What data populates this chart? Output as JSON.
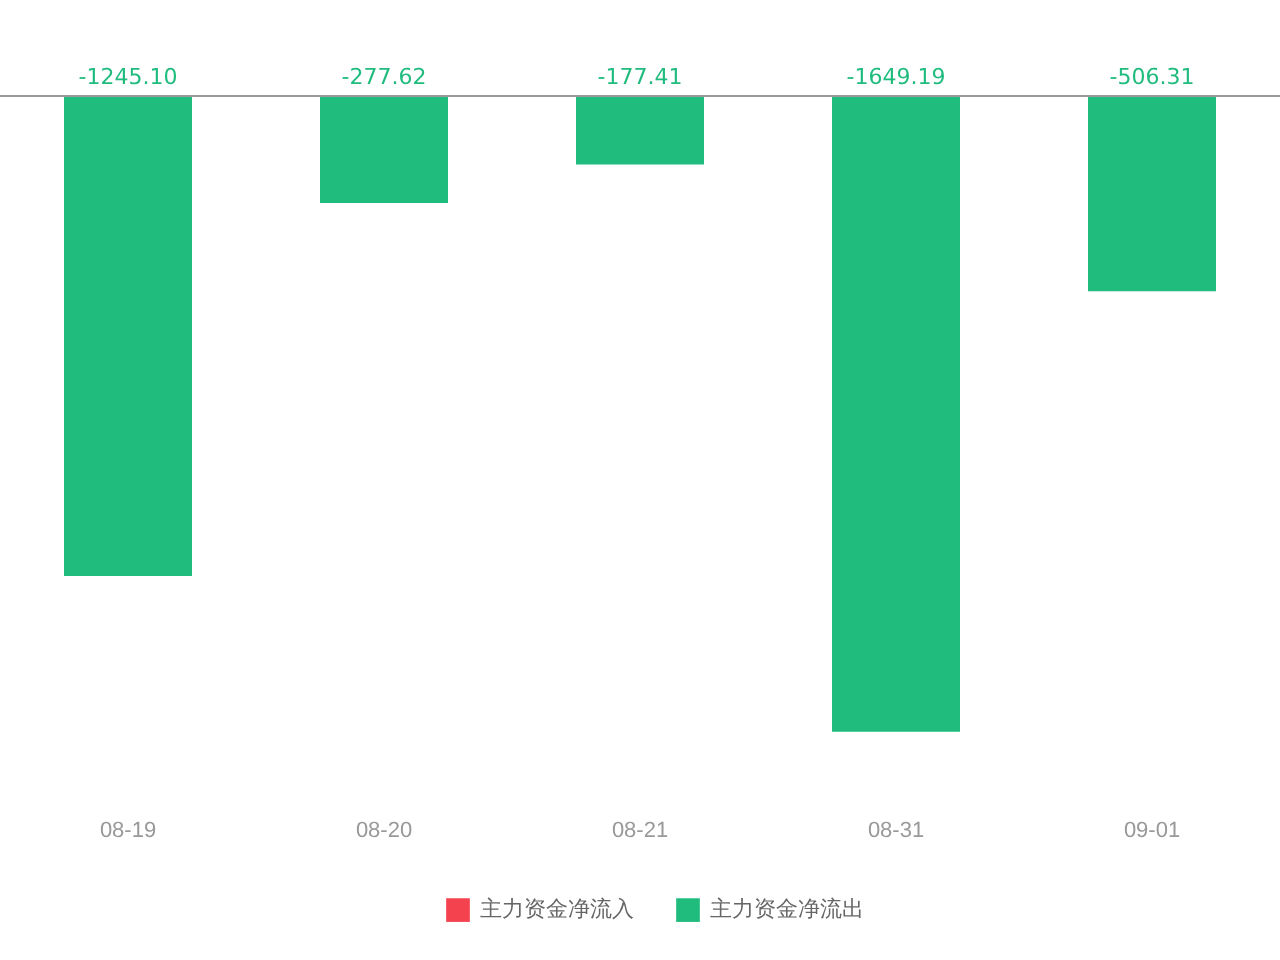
{
  "chart_data": {
    "type": "bar",
    "legend": "bottom",
    "grid": false,
    "categories": [
      "08-19",
      "08-20",
      "08-21",
      "08-31",
      "09-01"
    ],
    "series": [
      {
        "name": "主力资金净流入",
        "color": "#f5424f",
        "values": [
          null,
          null,
          null,
          null,
          null
        ]
      },
      {
        "name": "主力资金净流出",
        "color": "#20bc7e",
        "values": [
          -1245.1,
          -277.62,
          -177.41,
          -1649.19,
          -506.31
        ],
        "value_labels": [
          "-1245.10",
          "-277.62",
          "-177.41",
          "-1649.19",
          "-506.31"
        ]
      }
    ]
  }
}
